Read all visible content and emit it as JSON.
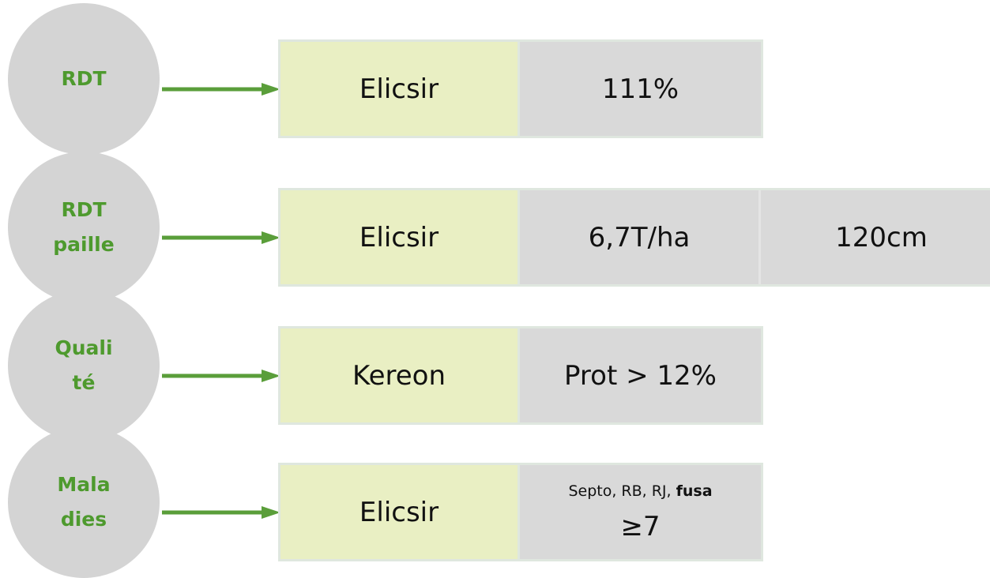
{
  "rows": [
    {
      "label_lines": [
        "RDT"
      ],
      "cells": [
        "Elicsir",
        "111%"
      ]
    },
    {
      "label_lines": [
        "RDT",
        "paille"
      ],
      "cells": [
        "Elicsir",
        "6,7T/ha",
        "120cm"
      ]
    },
    {
      "label_lines": [
        "Quali",
        "té"
      ],
      "cells": [
        "Kereon",
        "Prot > 12%"
      ]
    },
    {
      "label_lines": [
        "Mala",
        "dies"
      ],
      "cells": [
        "Elicsir"
      ],
      "detail": {
        "text": "Septo, RB, RJ,",
        "bold": "fusa",
        "value": "≥7"
      }
    }
  ]
}
